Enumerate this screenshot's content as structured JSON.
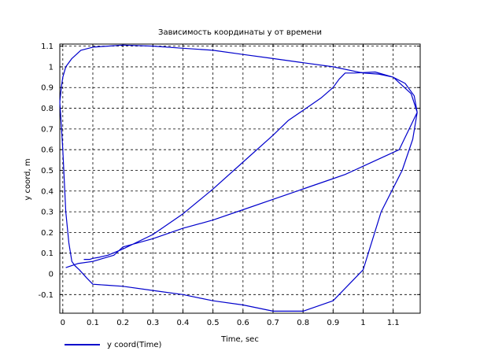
{
  "chart_data": {
    "type": "line",
    "title": "Зависимость координаты y от времени",
    "xlabel": "Time, sec",
    "ylabel": "y coord, m",
    "xlim": [
      -0.01,
      1.19
    ],
    "ylim": [
      -0.19,
      1.11
    ],
    "grid": true,
    "legend_position": "bottom-left",
    "x_ticks": [
      0,
      0.1,
      0.2,
      0.3,
      0.4,
      0.5,
      0.6,
      0.7,
      0.8,
      0.9,
      1,
      1.1
    ],
    "x_tick_labels": [
      "0",
      "0.1",
      "0.2",
      "0.3",
      "0.4",
      "0.5",
      "0.6",
      "0.7",
      "0.8",
      "0.9",
      "1",
      "1.1"
    ],
    "y_ticks": [
      -0.1,
      0,
      0.1,
      0.2,
      0.3,
      0.4,
      0.5,
      0.6,
      0.7,
      0.8,
      0.9,
      1,
      1.1
    ],
    "y_tick_labels": [
      "-0.1",
      "0",
      "0.1",
      "0.2",
      "0.3",
      "0.4",
      "0.5",
      "0.6",
      "0.7",
      "0.8",
      "0.9",
      "1",
      "1.1"
    ],
    "series": [
      {
        "name": "y coord(Time)",
        "color": "#0000cc",
        "x": [
          0.01,
          0.05,
          0.1,
          0.17,
          0.2,
          0.3,
          0.4,
          0.5,
          0.6,
          0.7,
          0.76,
          0.82,
          0.9,
          0.94,
          0.97,
          1.0,
          1.06,
          1.12,
          1.18,
          1.165,
          1.13,
          1.06,
          1.0,
          0.9,
          0.8,
          0.7,
          0.6,
          0.5,
          0.4,
          0.3,
          0.2,
          0.15,
          0.1,
          0.08,
          0.055,
          0.04,
          0.03,
          0.02,
          0.01,
          0.005,
          0.0,
          -0.005,
          -0.01,
          -0.005,
          0.0,
          0.01,
          0.03,
          0.06,
          0.1,
          0.15,
          0.2,
          0.3,
          0.4,
          0.5,
          0.6,
          0.7,
          0.8,
          0.9,
          1.0,
          1.05,
          1.1,
          1.14,
          1.17,
          1.18,
          1.16,
          1.1,
          1.04,
          0.97,
          0.94,
          0.92,
          0.9,
          0.86,
          0.8,
          0.75,
          0.7,
          0.6,
          0.5,
          0.4,
          0.3,
          0.2,
          0.15,
          0.12,
          0.1,
          0.09,
          0.07
        ],
        "y": [
          0.03,
          0.05,
          0.06,
          0.09,
          0.13,
          0.17,
          0.22,
          0.26,
          0.31,
          0.36,
          0.39,
          0.42,
          0.46,
          0.48,
          0.5,
          0.52,
          0.56,
          0.6,
          0.78,
          0.65,
          0.5,
          0.3,
          0.02,
          -0.13,
          -0.18,
          -0.18,
          -0.15,
          -0.13,
          -0.1,
          -0.08,
          -0.06,
          -0.055,
          -0.05,
          -0.02,
          0.02,
          0.04,
          0.06,
          0.15,
          0.3,
          0.45,
          0.6,
          0.72,
          0.83,
          0.9,
          0.95,
          1.0,
          1.04,
          1.08,
          1.095,
          1.1,
          1.105,
          1.1,
          1.09,
          1.08,
          1.06,
          1.04,
          1.02,
          1.0,
          0.97,
          0.965,
          0.95,
          0.92,
          0.86,
          0.78,
          0.87,
          0.95,
          0.975,
          0.97,
          0.97,
          0.94,
          0.9,
          0.85,
          0.79,
          0.74,
          0.67,
          0.54,
          0.41,
          0.29,
          0.19,
          0.12,
          0.09,
          0.08,
          0.075,
          0.07,
          0.07
        ]
      }
    ]
  }
}
